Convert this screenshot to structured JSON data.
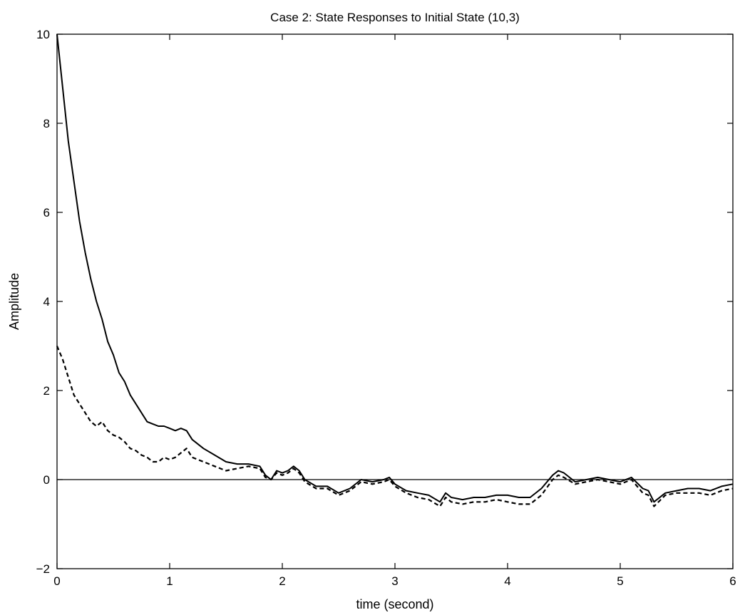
{
  "chart_data": {
    "type": "line",
    "title": "Case 2: State Responses to Initial State (10,3)",
    "xlabel": "time (second)",
    "ylabel": "Amplitude",
    "xlim": [
      0,
      6
    ],
    "ylim": [
      -2,
      10
    ],
    "xticks": [
      0,
      1,
      2,
      3,
      4,
      5,
      6
    ],
    "yticks": [
      -2,
      0,
      2,
      4,
      6,
      8,
      10
    ],
    "xtick_labels": [
      "0",
      "1",
      "2",
      "3",
      "4",
      "5",
      "6"
    ],
    "ytick_labels": [
      "−2",
      "0",
      "2",
      "4",
      "6",
      "8",
      "10"
    ],
    "grid": false,
    "legend": "none",
    "reference_line_y": 0,
    "series": [
      {
        "style": "solid",
        "x": [
          0,
          0.05,
          0.1,
          0.15,
          0.2,
          0.25,
          0.3,
          0.35,
          0.4,
          0.45,
          0.5,
          0.55,
          0.6,
          0.65,
          0.7,
          0.75,
          0.8,
          0.85,
          0.9,
          0.95,
          1.0,
          1.05,
          1.1,
          1.15,
          1.2,
          1.3,
          1.4,
          1.5,
          1.6,
          1.7,
          1.8,
          1.85,
          1.9,
          1.95,
          2.0,
          2.05,
          2.1,
          2.15,
          2.2,
          2.3,
          2.4,
          2.5,
          2.6,
          2.7,
          2.8,
          2.9,
          2.95,
          3.0,
          3.1,
          3.2,
          3.3,
          3.4,
          3.45,
          3.5,
          3.6,
          3.7,
          3.8,
          3.9,
          4.0,
          4.1,
          4.2,
          4.3,
          4.4,
          4.45,
          4.5,
          4.6,
          4.7,
          4.8,
          4.9,
          5.0,
          5.1,
          5.2,
          5.25,
          5.3,
          5.4,
          5.5,
          5.6,
          5.7,
          5.8,
          5.9,
          6.0
        ],
        "y": [
          10.0,
          8.8,
          7.6,
          6.7,
          5.8,
          5.1,
          4.5,
          4.0,
          3.6,
          3.1,
          2.8,
          2.4,
          2.2,
          1.9,
          1.7,
          1.5,
          1.3,
          1.25,
          1.2,
          1.2,
          1.15,
          1.1,
          1.15,
          1.1,
          0.9,
          0.7,
          0.55,
          0.4,
          0.35,
          0.35,
          0.3,
          0.1,
          0.0,
          0.2,
          0.15,
          0.2,
          0.3,
          0.2,
          0.0,
          -0.15,
          -0.15,
          -0.3,
          -0.2,
          0.0,
          -0.05,
          0.0,
          0.05,
          -0.1,
          -0.25,
          -0.3,
          -0.35,
          -0.5,
          -0.3,
          -0.4,
          -0.45,
          -0.4,
          -0.4,
          -0.35,
          -0.35,
          -0.4,
          -0.4,
          -0.2,
          0.1,
          0.2,
          0.15,
          -0.05,
          0.0,
          0.05,
          0.0,
          -0.05,
          0.05,
          -0.2,
          -0.25,
          -0.5,
          -0.3,
          -0.25,
          -0.2,
          -0.2,
          -0.25,
          -0.15,
          -0.1
        ]
      },
      {
        "style": "dashed",
        "x": [
          0,
          0.05,
          0.1,
          0.15,
          0.2,
          0.25,
          0.3,
          0.35,
          0.4,
          0.45,
          0.5,
          0.55,
          0.6,
          0.65,
          0.7,
          0.75,
          0.8,
          0.85,
          0.9,
          0.95,
          1.0,
          1.05,
          1.1,
          1.15,
          1.2,
          1.3,
          1.4,
          1.5,
          1.6,
          1.7,
          1.8,
          1.85,
          1.9,
          1.95,
          2.0,
          2.05,
          2.1,
          2.15,
          2.2,
          2.3,
          2.4,
          2.5,
          2.6,
          2.7,
          2.8,
          2.9,
          2.95,
          3.0,
          3.1,
          3.2,
          3.3,
          3.4,
          3.45,
          3.5,
          3.6,
          3.7,
          3.8,
          3.9,
          4.0,
          4.1,
          4.2,
          4.3,
          4.4,
          4.45,
          4.5,
          4.6,
          4.7,
          4.8,
          4.9,
          5.0,
          5.1,
          5.2,
          5.25,
          5.3,
          5.4,
          5.5,
          5.6,
          5.7,
          5.8,
          5.9,
          6.0
        ],
        "y": [
          3.0,
          2.7,
          2.3,
          1.9,
          1.7,
          1.5,
          1.3,
          1.2,
          1.3,
          1.1,
          1.0,
          0.95,
          0.85,
          0.7,
          0.65,
          0.55,
          0.5,
          0.4,
          0.4,
          0.5,
          0.45,
          0.5,
          0.6,
          0.7,
          0.5,
          0.4,
          0.3,
          0.2,
          0.25,
          0.3,
          0.25,
          0.05,
          0.0,
          0.15,
          0.1,
          0.15,
          0.25,
          0.15,
          -0.05,
          -0.2,
          -0.2,
          -0.35,
          -0.25,
          -0.05,
          -0.1,
          -0.05,
          0.0,
          -0.15,
          -0.3,
          -0.4,
          -0.45,
          -0.6,
          -0.4,
          -0.5,
          -0.55,
          -0.5,
          -0.5,
          -0.45,
          -0.5,
          -0.55,
          -0.55,
          -0.35,
          0.0,
          0.1,
          0.05,
          -0.1,
          -0.05,
          0.0,
          -0.05,
          -0.1,
          0.0,
          -0.3,
          -0.35,
          -0.6,
          -0.35,
          -0.3,
          -0.3,
          -0.3,
          -0.35,
          -0.25,
          -0.2
        ]
      }
    ]
  }
}
